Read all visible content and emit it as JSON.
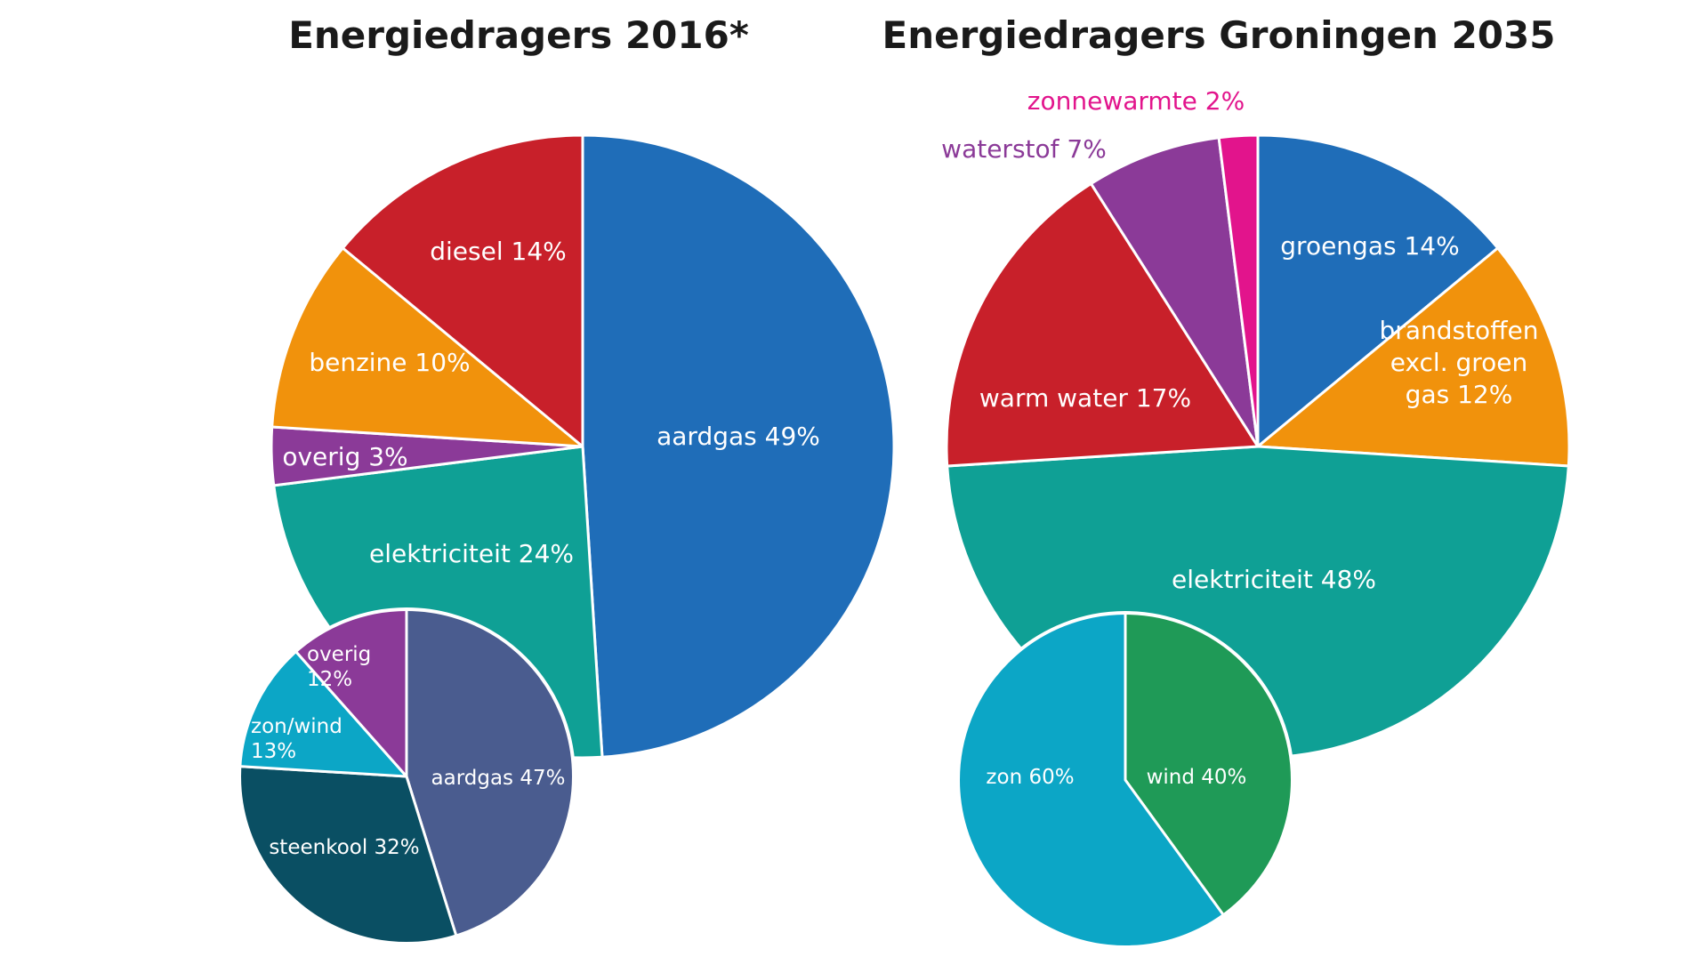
{
  "chart_data": [
    {
      "type": "pie",
      "title": "Energiedragers 2016*",
      "slices": [
        {
          "label": "aardgas 49%",
          "value": 49,
          "color": "#1f6db8"
        },
        {
          "label": "elektriciteit 24%",
          "value": 24,
          "color": "#0fa095"
        },
        {
          "label": "overig 3%",
          "value": 3,
          "color": "#8b3a98"
        },
        {
          "label": "benzine 10%",
          "value": 10,
          "color": "#f1920c"
        },
        {
          "label": "diesel 14%",
          "value": 14,
          "color": "#c8202a"
        }
      ]
    },
    {
      "type": "pie",
      "title": "",
      "subpie_of": "elektriciteit 24%",
      "slices": [
        {
          "label": "aardgas 47%",
          "value": 47,
          "color": "#4a5c8f"
        },
        {
          "label": "steenkool 32%",
          "value": 32,
          "color": "#0a4f63"
        },
        {
          "label": "zon/wind 13%",
          "label_lines": [
            "zon/wind",
            "13%"
          ],
          "value": 13,
          "color": "#0ca6c6"
        },
        {
          "label": "overig 12%",
          "label_lines": [
            "overig",
            "12%"
          ],
          "value": 12,
          "color": "#8b3a98"
        }
      ]
    },
    {
      "type": "pie",
      "title": "Energiedragers Groningen 2035",
      "slices": [
        {
          "label": "groengas 14%",
          "value": 14,
          "color": "#1f6db8"
        },
        {
          "label": "brandstoffen excl. groen gas 12%",
          "label_lines": [
            "brandstoffen",
            "excl. groen",
            "gas 12%"
          ],
          "value": 12,
          "color": "#f1920c"
        },
        {
          "label": "elektriciteit 48%",
          "value": 48,
          "color": "#0fa095"
        },
        {
          "label": "warm water 17%",
          "value": 17,
          "color": "#c8202a"
        },
        {
          "label": "waterstof 7%",
          "value": 7,
          "color": "#8b3a98",
          "label_color": "#8b3a98"
        },
        {
          "label": "zonnewarmte 2%",
          "value": 2,
          "color": "#e2148c",
          "label_color": "#e2148c"
        }
      ]
    },
    {
      "type": "pie",
      "title": "",
      "subpie_of": "elektriciteit 48%",
      "slices": [
        {
          "label": "wind 40%",
          "value": 40,
          "color": "#1f9a57"
        },
        {
          "label": "zon 60%",
          "value": 60,
          "color": "#0ca6c6"
        }
      ]
    }
  ]
}
